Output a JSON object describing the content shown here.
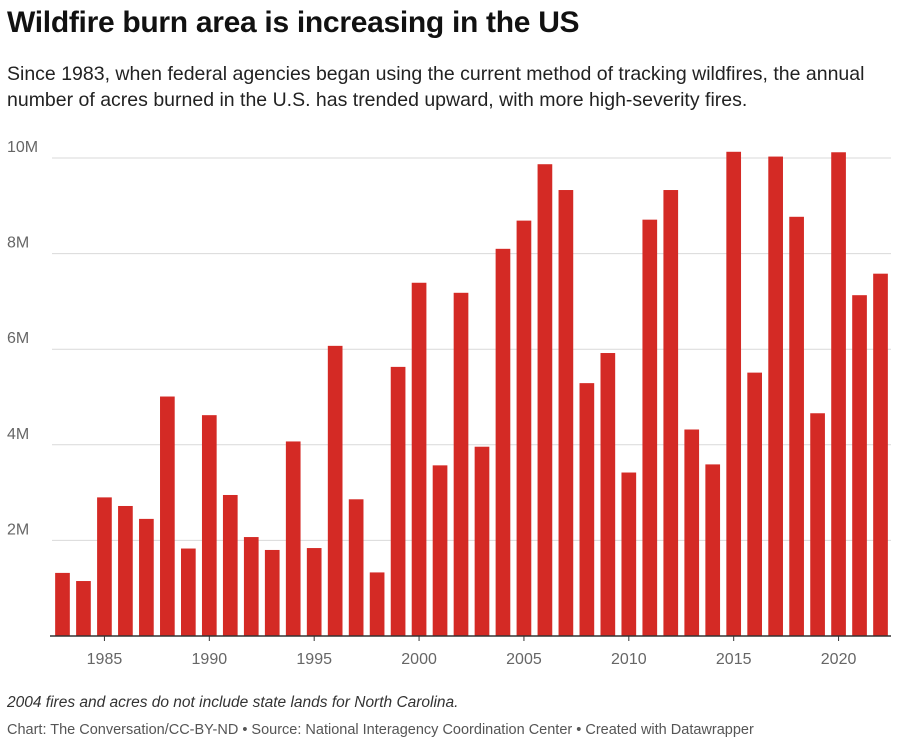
{
  "header": {
    "title": "Wildfire burn area is increasing in the US",
    "subtitle": "Since 1983, when federal agencies began using the current method of tracking wildfires, the annual number of acres burned in the U.S. has trended upward, with more high-severity fires."
  },
  "footer": {
    "note": "2004 fires and acres do not include state lands for North Carolina.",
    "credit": "Chart: The Conversation/CC-BY-ND • Source: National Interagency Coordination Center • Created with Datawrapper"
  },
  "colors": {
    "bar": "#d42a25",
    "grid": "#d9d9d9",
    "axis": "#333333",
    "tick_text": "#666666"
  },
  "chart_data": {
    "type": "bar",
    "title": "",
    "xlabel": "",
    "ylabel": "",
    "ylim": [
      0,
      10000000
    ],
    "grid": true,
    "y_ticks": [
      2000000,
      4000000,
      6000000,
      8000000,
      10000000
    ],
    "y_tick_labels": [
      "2M",
      "4M",
      "6M",
      "8M",
      "10M"
    ],
    "x_ticks": [
      1985,
      1990,
      1995,
      2000,
      2005,
      2010,
      2015,
      2020
    ],
    "x_tick_labels": [
      "1985",
      "1990",
      "1995",
      "2000",
      "2005",
      "2010",
      "2015",
      "2020"
    ],
    "categories": [
      1983,
      1984,
      1985,
      1986,
      1987,
      1988,
      1989,
      1990,
      1991,
      1992,
      1993,
      1994,
      1995,
      1996,
      1997,
      1998,
      1999,
      2000,
      2001,
      2002,
      2003,
      2004,
      2005,
      2006,
      2007,
      2008,
      2009,
      2010,
      2011,
      2012,
      2013,
      2014,
      2015,
      2016,
      2017,
      2018,
      2019,
      2020,
      2021,
      2022
    ],
    "values": [
      1320000,
      1150000,
      2900000,
      2720000,
      2450000,
      5010000,
      1830000,
      4620000,
      2950000,
      2070000,
      1800000,
      4070000,
      1840000,
      6070000,
      2860000,
      1330000,
      5630000,
      7390000,
      3570000,
      7180000,
      3960000,
      8100000,
      8690000,
      9870000,
      9330000,
      5290000,
      5920000,
      3420000,
      8710000,
      9330000,
      4320000,
      3590000,
      10130000,
      5510000,
      10030000,
      8770000,
      4660000,
      10120000,
      7130000,
      7580000
    ]
  }
}
